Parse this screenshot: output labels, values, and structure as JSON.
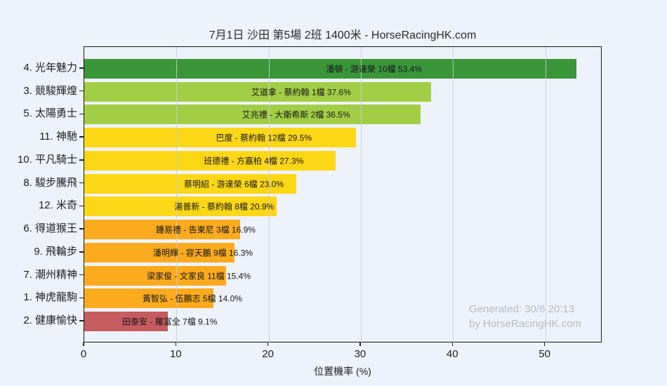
{
  "header": {
    "title": "7月1日 沙田 第5場 2班 1400米 - HorseRacingHK.com"
  },
  "chart_data": {
    "type": "bar",
    "orientation": "horizontal",
    "title": "7月1日 沙田 第5場 2班 1400米 - HorseRacingHK.com",
    "xlabel": "位置機率 (%)",
    "ylabel": "",
    "xlim": [
      0,
      56.2
    ],
    "xticks": [
      0,
      10,
      20,
      30,
      40,
      50
    ],
    "grid": "vertical",
    "legend": "none",
    "categories": [
      "4. 光年魅力",
      "3. 競駿輝煌",
      "5. 太陽勇士",
      "11. 神馳",
      "10. 平凡騎士",
      "8. 駿步騰飛",
      "12. 米奇",
      "6. 得道猴王",
      "9. 飛輪步",
      "7. 潮州精神",
      "1. 神虎龍駒",
      "2. 健康愉快"
    ],
    "values": [
      53.4,
      37.6,
      36.5,
      29.5,
      27.3,
      23.0,
      20.9,
      16.9,
      16.3,
      15.4,
      14.0,
      9.1
    ],
    "bar_labels": [
      "潘頓 - 游達榮 10檔  53.4%",
      "艾道拿 - 蔡約翰 1檔  37.6%",
      "艾兆禮 - 大衛希斯 2檔  36.5%",
      "巴度 - 蔡約翰 12檔  29.5%",
      "班德禮 - 方嘉柏 4檔  27.3%",
      "蔡明紹 - 游達榮 6檔  23.0%",
      "湯普新 - 蔡約翰 8檔  20.9%",
      "鍾易禮 - 告東尼 3檔  16.9%",
      "潘明輝 - 容天鵬 9檔  16.3%",
      "梁家俊 - 文家良 11檔  15.4%",
      "黃智弘 - 伍鵬志 5檔  14.0%",
      "田泰安 - 羅富全 7檔  9.1%"
    ],
    "bar_colors": [
      "#3a9639",
      "#a2ce46",
      "#a2ce46",
      "#fcd716",
      "#fcd716",
      "#fcd716",
      "#fcd716",
      "#fbab1d",
      "#fbab1d",
      "#fbab1d",
      "#fbab1d",
      "#c65b60"
    ],
    "colors": {
      "background": "#eef3fb",
      "gridline": "#c6cdd8",
      "spine": "#151515",
      "watermark_text": "#b4bac4"
    }
  },
  "watermark": {
    "line1": "Generated: 30/6 20:13",
    "line2": "by HorseRacingHK.com"
  }
}
